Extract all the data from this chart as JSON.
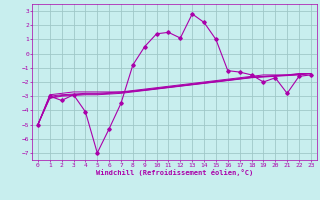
{
  "xlabel": "Windchill (Refroidissement éolien,°C)",
  "bg_color": "#c8eeee",
  "grid_color": "#a0c8c8",
  "line_color": "#aa00aa",
  "xlim": [
    -0.5,
    23.5
  ],
  "ylim": [
    -7.5,
    3.5
  ],
  "xticks": [
    0,
    1,
    2,
    3,
    4,
    5,
    6,
    7,
    8,
    9,
    10,
    11,
    12,
    13,
    14,
    15,
    16,
    17,
    18,
    19,
    20,
    21,
    22,
    23
  ],
  "yticks": [
    3,
    2,
    1,
    0,
    -1,
    -2,
    -3,
    -4,
    -5,
    -6,
    -7
  ],
  "main_x": [
    0,
    1,
    2,
    3,
    4,
    5,
    6,
    7,
    8,
    9,
    10,
    11,
    12,
    13,
    14,
    15,
    16,
    17,
    18,
    19,
    20,
    21,
    22,
    23
  ],
  "main_y": [
    -5,
    -3,
    -3.3,
    -2.9,
    -4.1,
    -7.0,
    -5.3,
    -3.5,
    -0.8,
    0.5,
    1.4,
    1.5,
    1.1,
    2.8,
    2.2,
    1.0,
    -1.2,
    -1.3,
    -1.5,
    -2.0,
    -1.7,
    -2.8,
    -1.6,
    -1.5
  ],
  "line2_y": [
    -5,
    -2.9,
    -2.8,
    -2.7,
    -2.7,
    -2.7,
    -2.7,
    -2.7,
    -2.6,
    -2.5,
    -2.4,
    -2.3,
    -2.2,
    -2.1,
    -2.0,
    -1.9,
    -1.8,
    -1.7,
    -1.6,
    -1.5,
    -1.5,
    -1.5,
    -1.4,
    -1.4
  ],
  "line3_y": [
    -5,
    -3.0,
    -2.9,
    -2.85,
    -2.8,
    -2.8,
    -2.75,
    -2.7,
    -2.65,
    -2.55,
    -2.45,
    -2.35,
    -2.25,
    -2.15,
    -2.05,
    -1.95,
    -1.85,
    -1.75,
    -1.65,
    -1.6,
    -1.55,
    -1.5,
    -1.45,
    -1.4
  ],
  "line4_y": [
    -5,
    -3.1,
    -2.95,
    -2.9,
    -2.85,
    -2.85,
    -2.8,
    -2.75,
    -2.65,
    -2.58,
    -2.48,
    -2.38,
    -2.28,
    -2.18,
    -2.08,
    -1.98,
    -1.88,
    -1.78,
    -1.68,
    -1.62,
    -1.57,
    -1.52,
    -1.47,
    -1.4
  ],
  "line5_y": [
    -5,
    -3.15,
    -3.0,
    -2.95,
    -2.9,
    -2.9,
    -2.85,
    -2.8,
    -2.7,
    -2.6,
    -2.5,
    -2.4,
    -2.3,
    -2.2,
    -2.1,
    -2.0,
    -1.9,
    -1.8,
    -1.7,
    -1.65,
    -1.6,
    -1.55,
    -1.5,
    -1.4
  ]
}
